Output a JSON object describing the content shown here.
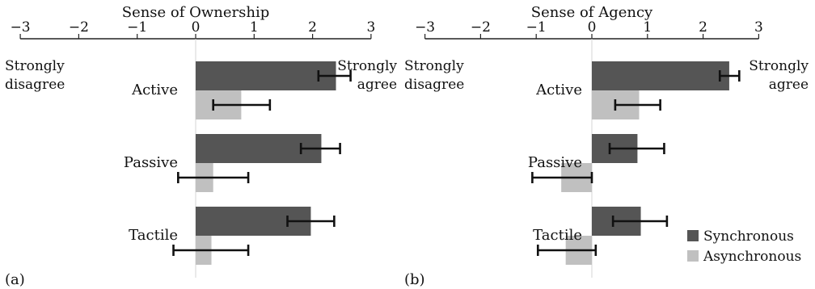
{
  "chart_data": [
    {
      "type": "bar",
      "orientation": "horizontal",
      "panel_label": "(a)",
      "title": "Sense of Ownership",
      "xlim": [
        -3,
        3
      ],
      "xticks": [
        -3,
        -2,
        -1,
        0,
        1,
        2,
        3
      ],
      "tick_labels": [
        "−3",
        "−2",
        "−1",
        "0",
        "1",
        "2",
        "3"
      ],
      "left_anchor": [
        "Strongly",
        "disagree"
      ],
      "right_anchor": [
        "Strongly",
        "agree"
      ],
      "categories": [
        "Active",
        "Passive",
        "Tactile"
      ],
      "series": [
        {
          "name": "Synchronous",
          "values": [
            2.4,
            2.15,
            1.97
          ],
          "err_low": [
            2.1,
            1.8,
            1.57
          ],
          "err_high": [
            2.65,
            2.47,
            2.37
          ]
        },
        {
          "name": "Asynchronous",
          "values": [
            0.78,
            0.3,
            0.27
          ],
          "err_low": [
            0.3,
            -0.3,
            -0.38
          ],
          "err_high": [
            1.27,
            0.9,
            0.9
          ]
        }
      ]
    },
    {
      "type": "bar",
      "orientation": "horizontal",
      "panel_label": "(b)",
      "title": "Sense of Agency",
      "xlim": [
        -3,
        3
      ],
      "xticks": [
        -3,
        -2,
        -1,
        0,
        1,
        2,
        3
      ],
      "tick_labels": [
        "−3",
        "−2",
        "−1",
        "0",
        "1",
        "2",
        "3"
      ],
      "left_anchor": [
        "Strongly",
        "disagree"
      ],
      "right_anchor": [
        "Strongly",
        "agree"
      ],
      "categories": [
        "Active",
        "Passive",
        "Tactile"
      ],
      "series": [
        {
          "name": "Synchronous",
          "values": [
            2.47,
            0.82,
            0.88
          ],
          "err_low": [
            2.3,
            0.32,
            0.38
          ],
          "err_high": [
            2.65,
            1.3,
            1.35
          ]
        },
        {
          "name": "Asynchronous",
          "values": [
            0.85,
            -0.55,
            -0.47
          ],
          "err_low": [
            0.42,
            -1.07,
            -0.97
          ],
          "err_high": [
            1.23,
            0.0,
            0.07
          ]
        }
      ]
    }
  ],
  "legend": {
    "placement": "bottom-right",
    "items": [
      {
        "label": "Synchronous",
        "color": "#555555"
      },
      {
        "label": "Asynchronous",
        "color": "#c0c0c0"
      }
    ]
  },
  "colors": {
    "Synchronous": "#555555",
    "Asynchronous": "#c0c0c0",
    "axis": "#222222",
    "errorbar": "#111111"
  }
}
